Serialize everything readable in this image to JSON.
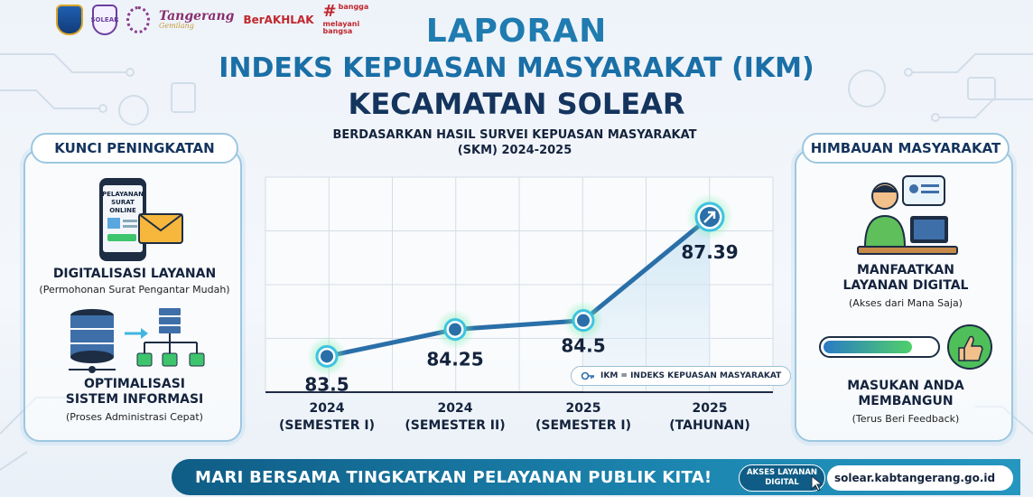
{
  "logos": {
    "solear_badge": "SOLEAR",
    "tangerang": "Tangerang",
    "tangerang_tag": "Gemilang",
    "berakhlak": "BerAKHLAK",
    "bangga_line1": "bangga",
    "bangga_line2": "melayani",
    "bangga_line3": "bangsa"
  },
  "header": {
    "line1": "LAPORAN",
    "line2": "INDEKS KEPUASAN MASYARAKAT (IKM)",
    "line3": "KECAMATAN SOLEAR"
  },
  "left_panel": {
    "heading": "KUNCI PENINGKATAN",
    "phone_screen": [
      "PELAYANAN",
      "SURAT",
      "ONLINE"
    ],
    "item1_title": "DIGITALISASI LAYANAN",
    "item1_sub": "(Permohonan Surat Pengantar Mudah)",
    "item2_title_l1": "OPTIMALISASI",
    "item2_title_l2": "SISTEM INFORMASI",
    "item2_sub": "(Proses Administrasi Cepat)"
  },
  "right_panel": {
    "heading": "HIMBAUAN MASYARAKAT",
    "item1_title_l1": "MANFAATKAN",
    "item1_title_l2": "LAYANAN DIGITAL",
    "item1_sub": "(Akses dari Mana Saja)",
    "item2_title_l1": "MASUKAN ANDA",
    "item2_title_l2": "MEMBANGUN",
    "item2_sub": "(Terus Beri Feedback)"
  },
  "chart_data": {
    "type": "line",
    "title": "BERDASARKAN HASIL SURVEI KEPUASAN MASYARAKAT",
    "subtitle": "(SKM) 2024-2025",
    "categories": [
      [
        "2024",
        "(SEMESTER I)"
      ],
      [
        "2024",
        "(SEMESTER II)"
      ],
      [
        "2025",
        "(SEMESTER I)"
      ],
      [
        "2025",
        "(TAHUNAN)"
      ]
    ],
    "values": [
      83.5,
      84.25,
      84.5,
      87.39
    ],
    "value_labels": [
      "83.5",
      "84.25",
      "84.5",
      "87.39"
    ],
    "ylim": [
      82.5,
      88.5
    ],
    "grid": true,
    "legend_text": "IKM = INDEKS KEPUASAN MASYARAKAT",
    "legend_position": "bottom-right",
    "colors": {
      "line": "#2a6fa8",
      "marker": "#3fc3e0",
      "glow": "#7ef0b0",
      "area": "#cfe6f4"
    }
  },
  "footer": {
    "slogan": "MARI BERSAMA TINGKATKAN PELAYANAN PUBLIK KITA!",
    "pill_line1": "AKSES LAYANAN",
    "pill_line2": "DIGITAL",
    "url": "solear.kabtangerang.go.id"
  }
}
